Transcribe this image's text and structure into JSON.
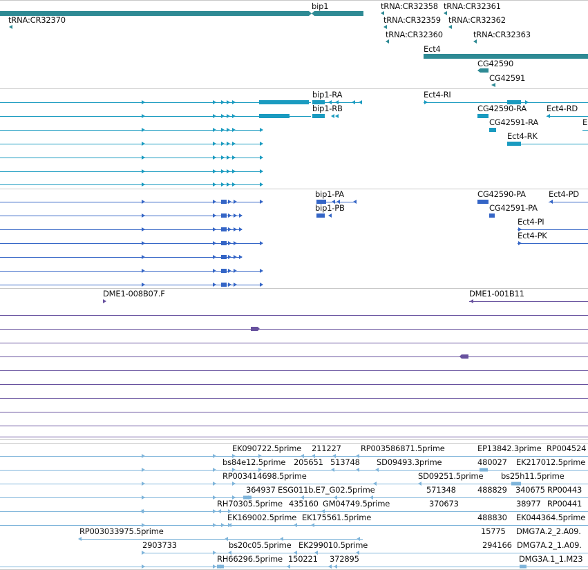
{
  "colors": {
    "gene": "#2e8a94",
    "transcript": "#1a9bc0",
    "protein": "#3465c6",
    "clone": "#67519e",
    "est": "#7eb4da",
    "separator": "#c8c8c8"
  },
  "tracks": {
    "genes": [
      "bip1",
      "tRNA:CR32370",
      "tRNA:CR32358",
      "tRNA:CR32361",
      "tRNA:CR32359",
      "tRNA:CR32362",
      "tRNA:CR32360",
      "tRNA:CR32363",
      "Ect4",
      "CG42590",
      "CG42591"
    ],
    "transcripts": [
      "bip1-RA",
      "bip1-RB",
      "Ect4-RI",
      "CG42590-RA",
      "Ect4-RD",
      "CG42591-RA",
      "E",
      "Ect4-RK"
    ],
    "proteins": [
      "bip1-PA",
      "bip1-PB",
      "CG42590-PA",
      "Ect4-PD",
      "CG42591-PA",
      "Ect4-PI",
      "Ect4-PK"
    ],
    "clones": [
      "DME1-008B07.F",
      "DME1-001B11"
    ],
    "ests": [
      "EK090722.5prime",
      "211227",
      "RP003586871.5prime",
      "EP13842.3prime",
      "RP004524",
      "bs84e12.5prime",
      "205651",
      "513748",
      "SD09493.3prime",
      "480027",
      "EK217012.5prime",
      "RP003414698.5prime",
      "SD09251.5prime",
      "bs25h11.5prime",
      "364937",
      "ESG011b.E7_G02.5prime",
      "571348",
      "488829",
      "340675",
      "RP00443",
      "RH70305.5prime",
      "435160",
      "GM04749.5prime",
      "370673",
      "38977",
      "RP00441",
      "EK169002.5prime",
      "EK175561.5prime",
      "488830",
      "EK044364.5prime",
      "RP003033975.5prime",
      "15775",
      "DMG7A.2_2.A09.",
      "2903733",
      "bs20c05.5prime",
      "EK299010.5prime",
      "294166",
      "DMG7A.2_1.A09.",
      "RH66296.5prime",
      "150221",
      "372895",
      "DMG3A.1_1.M23"
    ]
  }
}
